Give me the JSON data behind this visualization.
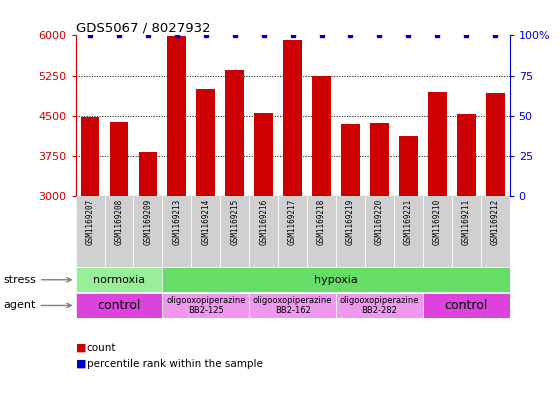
{
  "title": "GDS5067 / 8027932",
  "samples": [
    "GSM1169207",
    "GSM1169208",
    "GSM1169209",
    "GSM1169213",
    "GSM1169214",
    "GSM1169215",
    "GSM1169216",
    "GSM1169217",
    "GSM1169218",
    "GSM1169219",
    "GSM1169220",
    "GSM1169221",
    "GSM1169210",
    "GSM1169211",
    "GSM1169212"
  ],
  "counts": [
    4470,
    4390,
    3820,
    5990,
    5000,
    5350,
    4560,
    5920,
    5250,
    4350,
    4360,
    4120,
    4940,
    4530,
    4930
  ],
  "ymin": 3000,
  "ymax": 6000,
  "yticks": [
    3000,
    3750,
    4500,
    5250,
    6000
  ],
  "right_yticks": [
    0,
    25,
    50,
    75,
    100
  ],
  "bar_color": "#cc0000",
  "dot_color": "#0000cc",
  "bg_color": "#ffffff",
  "plot_bg": "#ffffff",
  "gray_bg": "#d0d0d0",
  "stress_segments": [
    {
      "label": "normoxia",
      "color": "#99ee99",
      "start": 0,
      "end": 3
    },
    {
      "label": "hypoxia",
      "color": "#66dd66",
      "start": 3,
      "end": 15
    }
  ],
  "agent_segments": [
    {
      "label": "control",
      "color": "#dd44dd",
      "start": 0,
      "end": 3,
      "fontsize": 9
    },
    {
      "label": "oligooxopiperazine\nBB2-125",
      "color": "#ee99ee",
      "start": 3,
      "end": 6,
      "fontsize": 6
    },
    {
      "label": "oligooxopiperazine\nBB2-162",
      "color": "#ee99ee",
      "start": 6,
      "end": 9,
      "fontsize": 6
    },
    {
      "label": "oligooxopiperazine\nBB2-282",
      "color": "#ee99ee",
      "start": 9,
      "end": 12,
      "fontsize": 6
    },
    {
      "label": "control",
      "color": "#dd44dd",
      "start": 12,
      "end": 15,
      "fontsize": 9
    }
  ],
  "legend_count_label": "count",
  "legend_pct_label": "percentile rank within the sample",
  "bar_color_left": "#cc0000",
  "right_ylabel_color": "#0000cc"
}
